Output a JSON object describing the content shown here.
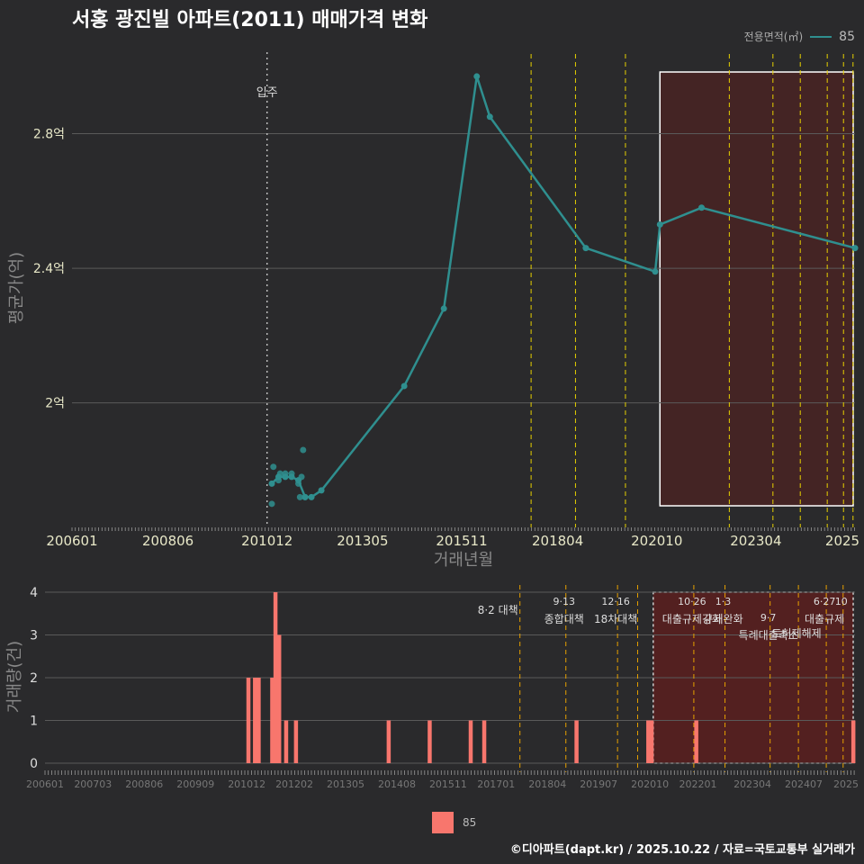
{
  "title": "서홍 광진빌 아파트(2011) 매매가격 변화",
  "footer": "©디아파트(dapt.kr) / 2025.10.22 / 자료=국토교통부 실거래가",
  "colors": {
    "line": "#2f8f8f",
    "bar": "#f8766d",
    "policy_yellow": "#e6d000",
    "policy_orange": "#e6a000",
    "highlight": "#5a1f1f"
  },
  "chart_data": [
    {
      "type": "line",
      "title": "서홍 광진빌 아파트(2011) 매매가격 변화",
      "xlabel": "거래년월",
      "ylabel": "평균가(억)",
      "x_tick_labels": [
        "200601",
        "200806",
        "201012",
        "201305",
        "201511",
        "201804",
        "202010",
        "202304",
        "2025"
      ],
      "y_ticks": [
        2.0,
        2.4,
        2.8
      ],
      "y_tick_labels": [
        "2억",
        "2.4억",
        "2.8억"
      ],
      "ylim": [
        1.63,
        3.05
      ],
      "xlim": [
        2006.0,
        2025.75
      ],
      "legend_title": "전용면적(㎡)",
      "legend_entry": "85",
      "annotation": "입주",
      "move_in_x": 2010.92,
      "highlight_range": [
        2020.83,
        2025.75
      ],
      "policy_lines": [
        2017.58,
        2018.7,
        2019.96,
        2022.58,
        2023.68,
        2024.37,
        2025.05,
        2025.46,
        2025.7
      ],
      "line_series": {
        "name": "85",
        "x": [
          2011.04,
          2011.21,
          2011.38,
          2011.54,
          2011.71,
          2011.88,
          2012.04,
          2012.29,
          2014.38,
          2015.38,
          2016.21,
          2016.54,
          2018.96,
          2020.71,
          2020.83,
          2021.88,
          2025.75
        ],
        "values": [
          1.76,
          1.78,
          1.78,
          1.78,
          1.77,
          1.72,
          1.72,
          1.74,
          2.05,
          2.28,
          2.97,
          2.85,
          2.46,
          2.39,
          2.53,
          2.58,
          2.46
        ]
      },
      "scatter_points": {
        "x": [
          2011.04,
          2011.08,
          2011.21,
          2011.25,
          2011.38,
          2011.54,
          2011.71,
          2011.75,
          2011.79,
          2011.83,
          2011.88
        ],
        "values": [
          1.7,
          1.81,
          1.77,
          1.79,
          1.79,
          1.79,
          1.76,
          1.72,
          1.78,
          1.86,
          1.72
        ]
      }
    },
    {
      "type": "bar",
      "ylabel": "거래량(건)",
      "x_tick_labels": [
        "200601",
        "200703",
        "200806",
        "200909",
        "201012",
        "201202",
        "201305",
        "201408",
        "201511",
        "201701",
        "201804",
        "201907",
        "202010",
        "202201",
        "202304",
        "202407",
        "2025"
      ],
      "y_ticks": [
        0,
        1,
        2,
        3,
        4
      ],
      "xlim": [
        2006.0,
        2025.75
      ],
      "highlight_range": [
        2020.83,
        2025.75
      ],
      "bars": {
        "x": [
          2010.96,
          2011.12,
          2011.21,
          2011.54,
          2011.62,
          2011.71,
          2011.88,
          2012.12,
          2014.38,
          2015.38,
          2016.38,
          2016.71,
          2018.96,
          2020.71,
          2020.79,
          2021.88,
          2025.71
        ],
        "values": [
          2,
          2,
          2,
          2,
          4,
          3,
          1,
          1,
          1,
          1,
          1,
          1,
          1,
          1,
          1,
          1,
          1
        ]
      },
      "policy_events": [
        {
          "x": 2017.58,
          "date": "",
          "name": "8·2 대책"
        },
        {
          "x": 2018.7,
          "date": "9·13",
          "name": "종합대책"
        },
        {
          "x": 2019.96,
          "date": "12·16",
          "name": "18차대책"
        },
        {
          "x": 2020.45,
          "date": "",
          "name": ""
        },
        {
          "x": 2021.82,
          "date": "10·26",
          "name": "대출규제강화"
        },
        {
          "x": 2022.58,
          "date": "1·3",
          "name": "규제완화"
        },
        {
          "x": 2023.68,
          "date": "9·7",
          "name": "특례대출축소"
        },
        {
          "x": 2024.37,
          "date": "",
          "name": "토허제해제"
        },
        {
          "x": 2025.05,
          "date": "6·27",
          "name": "대출규제"
        },
        {
          "x": 2025.46,
          "date": "10",
          "name": ""
        }
      ]
    }
  ]
}
